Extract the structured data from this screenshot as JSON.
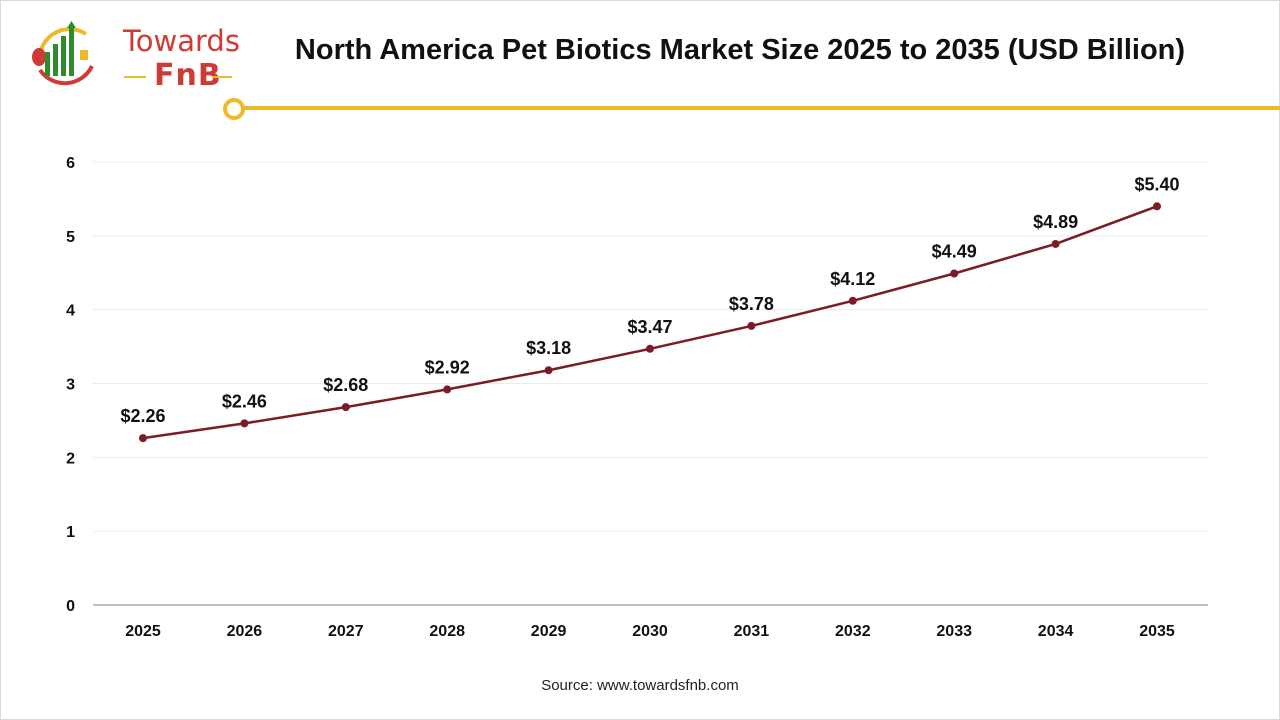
{
  "brand": {
    "line1": "Towards",
    "line2": "FnB",
    "colors": {
      "red": "#d03a34",
      "green": "#2e8b2e",
      "yellow": "#f0b92a"
    }
  },
  "title": "North America Pet Biotics Market Size 2025 to 2035 (USD Billion)",
  "source": "Source: www.towardsfnb.com",
  "chart_data": {
    "type": "line",
    "title": "North America Pet Biotics Market Size 2025 to 2035 (USD Billion)",
    "xlabel": "",
    "ylabel": "",
    "categories": [
      "2025",
      "2026",
      "2027",
      "2028",
      "2029",
      "2030",
      "2031",
      "2032",
      "2033",
      "2034",
      "2035"
    ],
    "values": [
      2.26,
      2.46,
      2.68,
      2.92,
      3.18,
      3.47,
      3.78,
      4.12,
      4.49,
      4.89,
      5.4
    ],
    "data_labels": [
      "$2.26",
      "$2.46",
      "$2.68",
      "$2.92",
      "$3.18",
      "$3.47",
      "$3.78",
      "$4.12",
      "$4.49",
      "$4.89",
      "$5.40"
    ],
    "ylim": [
      0,
      6
    ],
    "yticks": [
      "0",
      "1",
      "2",
      "3",
      "4",
      "5",
      "6"
    ],
    "grid": true,
    "line_color": "#7b1c25"
  }
}
